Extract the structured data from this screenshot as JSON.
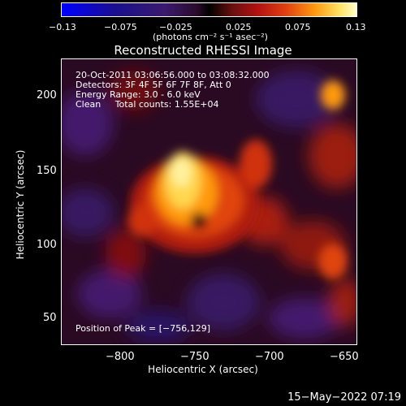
{
  "colorbar": {
    "ticks": [
      "−0.13",
      "−0.075",
      "−0.025",
      "0.025",
      "0.075",
      "0.13"
    ],
    "unit": "(photons cm⁻² s⁻¹ asec⁻²)"
  },
  "title": "Reconstructed RHESSI Image",
  "info": {
    "line1": "20-Oct-2011 03:06:56.000 to 03:08:32.000",
    "line2": "Detectors: 3F 4F 5F 6F 7F 8F, Att 0",
    "line3": "Energy Range: 3.0 - 6.0 keV",
    "line4": "Clean     Total counts: 1.55E+04"
  },
  "peak_label": "Position of Peak = [−756,129]",
  "axes": {
    "xlabel": "Heliocentric X (arcsec)",
    "ylabel": "Heliocentric Y (arcsec)",
    "xticks": [
      "−800",
      "−750",
      "−700",
      "−650"
    ],
    "yticks": [
      "200",
      "150",
      "100",
      "50"
    ]
  },
  "footer": "15−May−2022 07:19"
}
